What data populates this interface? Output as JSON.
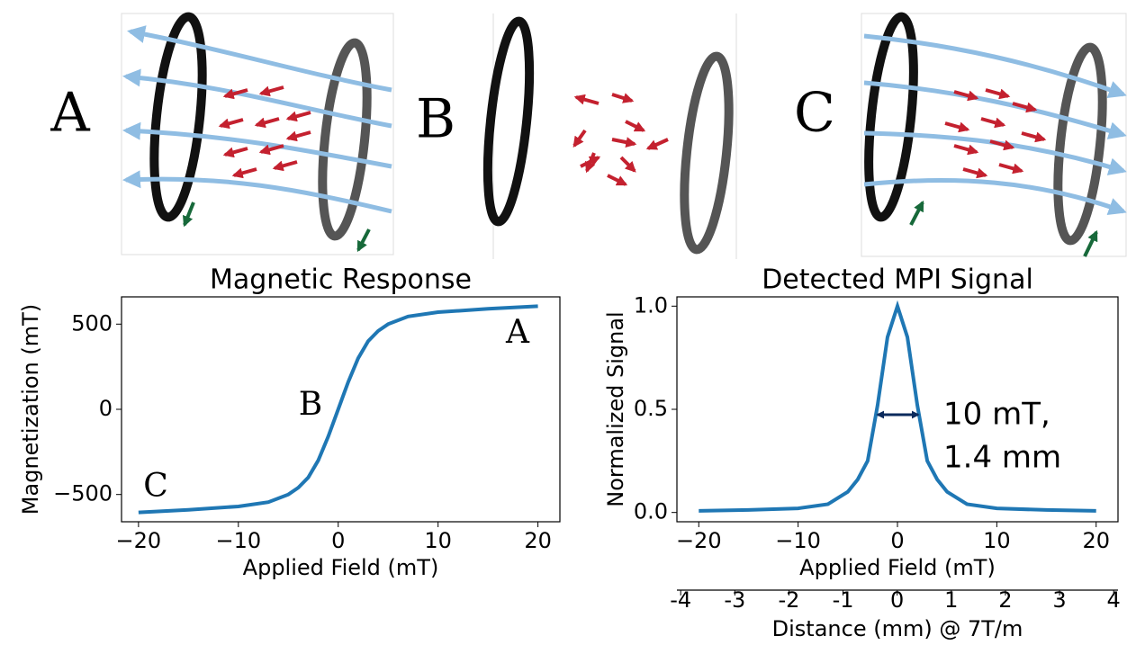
{
  "figure_labels": [
    "A",
    "B",
    "C"
  ],
  "chart_data": [
    {
      "type": "line",
      "title": "Magnetic Response",
      "x_label": "Applied Field (mT)",
      "y_label": "Magnetization (mT)",
      "x": [
        -20,
        -15,
        -10,
        -7,
        -5,
        -4,
        -3,
        -2,
        -1,
        0,
        1,
        2,
        3,
        4,
        5,
        7,
        10,
        15,
        20
      ],
      "values": [
        -605,
        -590,
        -570,
        -545,
        -500,
        -460,
        -400,
        -300,
        -160,
        0,
        160,
        300,
        400,
        460,
        500,
        545,
        570,
        590,
        605
      ],
      "color": "#1f77b4",
      "xlim": [
        -21.7,
        22.2
      ],
      "xticks": [
        {
          "value": -20,
          "label": "−20"
        },
        {
          "value": -10,
          "label": "−10"
        },
        0,
        10,
        20
      ],
      "ylim": [
        -660,
        660
      ],
      "yticks": [
        {
          "value": -500,
          "label": "−500"
        },
        0,
        500
      ],
      "annotations": [
        "A",
        "B",
        "C"
      ]
    },
    {
      "type": "line",
      "title": "Detected MPI Signal",
      "x_label": "Applied Field (mT)",
      "y_label": "Normalized Signal",
      "x": [
        -20,
        -15,
        -10,
        -7,
        -5,
        -4,
        -3,
        -2,
        -1,
        0,
        1,
        2,
        3,
        4,
        5,
        7,
        10,
        15,
        20
      ],
      "values": [
        0.008,
        0.012,
        0.02,
        0.04,
        0.1,
        0.16,
        0.25,
        0.52,
        0.85,
        1,
        0.85,
        0.52,
        0.25,
        0.16,
        0.1,
        0.04,
        0.02,
        0.012,
        0.008
      ],
      "color": "#1f77b4",
      "xlim": [
        -22.2,
        22.2
      ],
      "xticks": [
        {
          "value": -20,
          "label": "−20"
        },
        {
          "value": -10,
          "label": "−10"
        },
        0,
        10,
        20
      ],
      "ylim": [
        -0.045,
        1.045
      ],
      "yticks": [
        {
          "value": 0,
          "label": "0.0"
        },
        {
          "value": 0.5,
          "label": "0.5"
        },
        {
          "value": 1,
          "label": "1.0"
        }
      ],
      "x2_label": "Distance (mm) @ 7T/m",
      "x2lim": [
        -4.07,
        4.08
      ],
      "x2ticks": [
        -4,
        -3,
        -2,
        -1,
        0,
        1,
        2,
        3,
        4
      ],
      "annotations": [
        "10 mT,",
        "1.4 mm"
      ]
    }
  ]
}
